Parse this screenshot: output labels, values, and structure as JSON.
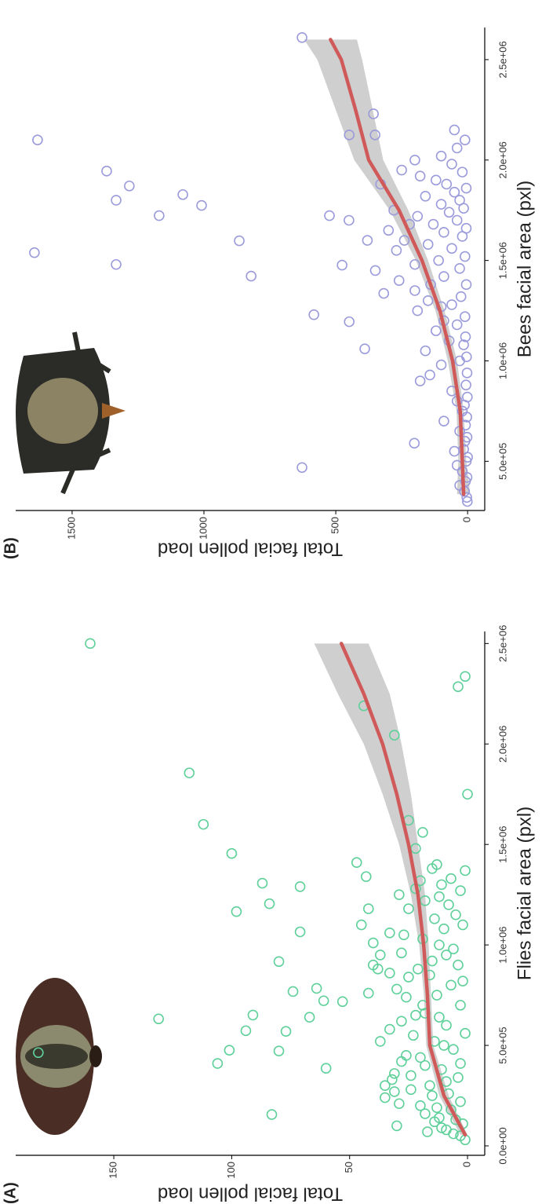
{
  "chart_data": [
    {
      "type": "scatter",
      "panel_label": "(A)",
      "xlabel": "Flies facial area (pxl)",
      "ylabel": "Total facial pollen load",
      "xlim": [
        -47000,
        2560000
      ],
      "ylim": [
        -7.3,
        191.6
      ],
      "xticks": [
        {
          "value": 0,
          "label": "0.0e+00"
        },
        {
          "value": 500000,
          "label": "5.0e+05"
        },
        {
          "value": 1000000,
          "label": "1.0e+06"
        },
        {
          "value": 1500000,
          "label": "1.5e+06"
        },
        {
          "value": 2000000,
          "label": "2.0e+06"
        },
        {
          "value": 2500000,
          "label": "2.5e+06"
        }
      ],
      "yticks": [
        0,
        50,
        100,
        150
      ],
      "points": {
        "color": "#5fd09a",
        "x": [
          464000,
          2500000,
          1856000,
          632000,
          410000,
          1600000,
          1455000,
          1166000,
          476000,
          573000,
          651000,
          1307000,
          1205000,
          917000,
          472000,
          570000,
          768000,
          1065000,
          1290000,
          640000,
          156000,
          784000,
          722000,
          386000,
          718000,
          2044000,
          1750000,
          2285000,
          2336000,
          2190000,
          1410000,
          1340000,
          1180000,
          1010000,
          1100000,
          900000,
          950000,
          880000,
          760000,
          580000,
          520000,
          420000,
          300000,
          330000,
          360000,
          270000,
          240000,
          210000,
          100000,
          200000,
          140000,
          80000,
          50000,
          30000,
          60000,
          120000,
          250000,
          400000,
          650000,
          840000,
          1050000,
          1250000,
          1480000,
          1560000,
          1620000,
          1380000,
          1300000,
          1200000,
          1150000,
          1100000,
          1000000,
          950000,
          900000,
          850000,
          800000,
          750000,
          700000,
          660000,
          600000,
          560000,
          520000,
          480000,
          440000,
          380000,
          340000,
          300000,
          260000,
          220000,
          180000,
          160000,
          110000,
          90000,
          70000,
          350000,
          450000,
          550000,
          620000,
          700000,
          780000,
          820000,
          880000,
          920000,
          980000,
          1030000,
          1080000,
          1130000,
          1220000,
          1270000,
          1330000,
          1370000,
          1400000,
          1280000,
          1180000,
          1060000,
          960000,
          860000,
          740000,
          640000,
          500000,
          410000,
          320000,
          280000,
          190000,
          130000,
          1320000,
          1240000
        ],
        "values": [
          182,
          160,
          118,
          131,
          106,
          112,
          100,
          98,
          101,
          94,
          91,
          87,
          84,
          80,
          80,
          77,
          74,
          71,
          71,
          67,
          83,
          64,
          61,
          60,
          53,
          31,
          0,
          4,
          1,
          44,
          47,
          43,
          42,
          40,
          45,
          40,
          37,
          38,
          42,
          33,
          37,
          28,
          35,
          32,
          31,
          31,
          35,
          29,
          30,
          20,
          12,
          9,
          3,
          1,
          6,
          14,
          15,
          18,
          22,
          25,
          27,
          29,
          22,
          19,
          25,
          15,
          11,
          8,
          5,
          2,
          12,
          9,
          4,
          16,
          7,
          13,
          3,
          18,
          9,
          1,
          14,
          6,
          20,
          11,
          4,
          16,
          8,
          3,
          7,
          18,
          2,
          11,
          17,
          24,
          26,
          23,
          28,
          19,
          30,
          2,
          21,
          15,
          6,
          19,
          10,
          14,
          18,
          3,
          7,
          1,
          13,
          22,
          25,
          33,
          28,
          33,
          26,
          12,
          10,
          3,
          9,
          24,
          13,
          5,
          20,
          12
        ]
      },
      "trend": {
        "color": "#d05a5a",
        "band_color": "#cfcfcf",
        "x": [
          55000,
          250000,
          500000,
          750000,
          1000000,
          1250000,
          1500000,
          1750000,
          2000000,
          2250000,
          2500000
        ],
        "values": [
          1,
          10,
          16,
          17,
          18.6,
          21,
          25,
          30,
          36,
          44,
          53.5
        ],
        "lower": [
          0,
          8,
          14.5,
          15.5,
          16.5,
          18,
          21,
          24,
          28,
          33,
          42
        ],
        "upper": [
          3,
          12,
          17.5,
          18.5,
          20.5,
          24,
          29,
          36,
          44,
          55,
          65
        ]
      }
    },
    {
      "type": "scatter",
      "panel_label": "(B)",
      "xlabel": "Bees facial area (pxl)",
      "ylabel": "Total facial pollen load",
      "xlim": [
        255000,
        2660000
      ],
      "ylim": [
        -65,
        1714
      ],
      "xticks": [
        {
          "value": 500000,
          "label": "5.0e+05"
        },
        {
          "value": 1000000,
          "label": "1.0e+06"
        },
        {
          "value": 1500000,
          "label": "1.5e+06"
        },
        {
          "value": 2000000,
          "label": "2.0e+06"
        },
        {
          "value": 2500000,
          "label": "2.5e+06"
        }
      ],
      "yticks": [
        0,
        500,
        1000,
        1500
      ],
      "points": {
        "color": "#9b9bdc",
        "x": [
          2100000,
          1539000,
          1945000,
          1800000,
          1871000,
          1480000,
          1723000,
          1828000,
          1598000,
          1422000,
          1774000,
          469000,
          2610000,
          1230000,
          1723000,
          1477000,
          1195000,
          2125000,
          2230000,
          2125000,
          930000,
          1336000,
          1060000,
          590000,
          1700000,
          1650000,
          1750000,
          1880000,
          1950000,
          1600000,
          1550000,
          1450000,
          1400000,
          1350000,
          1300000,
          1250000,
          1200000,
          1150000,
          1100000,
          1050000,
          980000,
          900000,
          850000,
          800000,
          750000,
          700000,
          650000,
          600000,
          550000,
          500000,
          450000,
          400000,
          380000,
          420000,
          350000,
          320000,
          300000,
          480000,
          520000,
          560000,
          620000,
          680000,
          720000,
          780000,
          820000,
          880000,
          940000,
          1000000,
          1020000,
          1080000,
          1120000,
          1180000,
          1220000,
          1280000,
          1320000,
          1380000,
          1420000,
          1460000,
          1500000,
          1520000,
          1560000,
          1580000,
          1620000,
          1640000,
          1660000,
          1680000,
          1700000,
          1720000,
          1740000,
          1760000,
          1780000,
          1800000,
          1820000,
          1840000,
          1860000,
          1880000,
          1900000,
          1940000,
          1980000,
          2020000,
          2060000,
          2100000,
          2150000,
          2000000,
          1920000,
          1680000,
          1600000,
          1480000,
          1380000,
          1270000
        ],
        "values": [
          1631,
          1643,
          1369,
          1333,
          1283,
          1333,
          1170,
          1080,
          866,
          821,
          1009,
          628,
          628,
          583,
          524,
          476,
          449,
          449,
          357,
          351,
          143,
          318,
          390,
          202,
          450,
          300,
          280,
          330,
          250,
          380,
          270,
          350,
          260,
          200,
          150,
          190,
          90,
          120,
          70,
          160,
          100,
          180,
          60,
          40,
          20,
          90,
          30,
          10,
          50,
          5,
          20,
          8,
          30,
          2,
          12,
          3,
          1,
          40,
          0,
          15,
          2,
          8,
          3,
          12,
          1,
          6,
          2,
          30,
          4,
          15,
          8,
          40,
          10,
          60,
          25,
          5,
          90,
          30,
          110,
          10,
          60,
          150,
          20,
          90,
          5,
          130,
          40,
          190,
          70,
          15,
          100,
          30,
          160,
          50,
          5,
          80,
          120,
          20,
          60,
          100,
          40,
          10,
          50,
          200,
          180,
          220,
          240,
          200,
          140,
          100
        ]
      },
      "trend": {
        "color": "#d05a5a",
        "band_color": "#cfcfcf",
        "x": [
          336000,
          500000,
          750000,
          1000000,
          1250000,
          1500000,
          1750000,
          2000000,
          2250000,
          2500000,
          2600000
        ],
        "values": [
          15,
          20,
          28,
          57,
          105,
          173,
          260,
          375,
          425,
          479,
          520
        ],
        "lower": [
          -10,
          5,
          15,
          40,
          88,
          150,
          225,
          320,
          360,
          400,
          420
        ],
        "upper": [
          40,
          35,
          42,
          75,
          122,
          196,
          295,
          430,
          500,
          570,
          620
        ]
      }
    }
  ]
}
